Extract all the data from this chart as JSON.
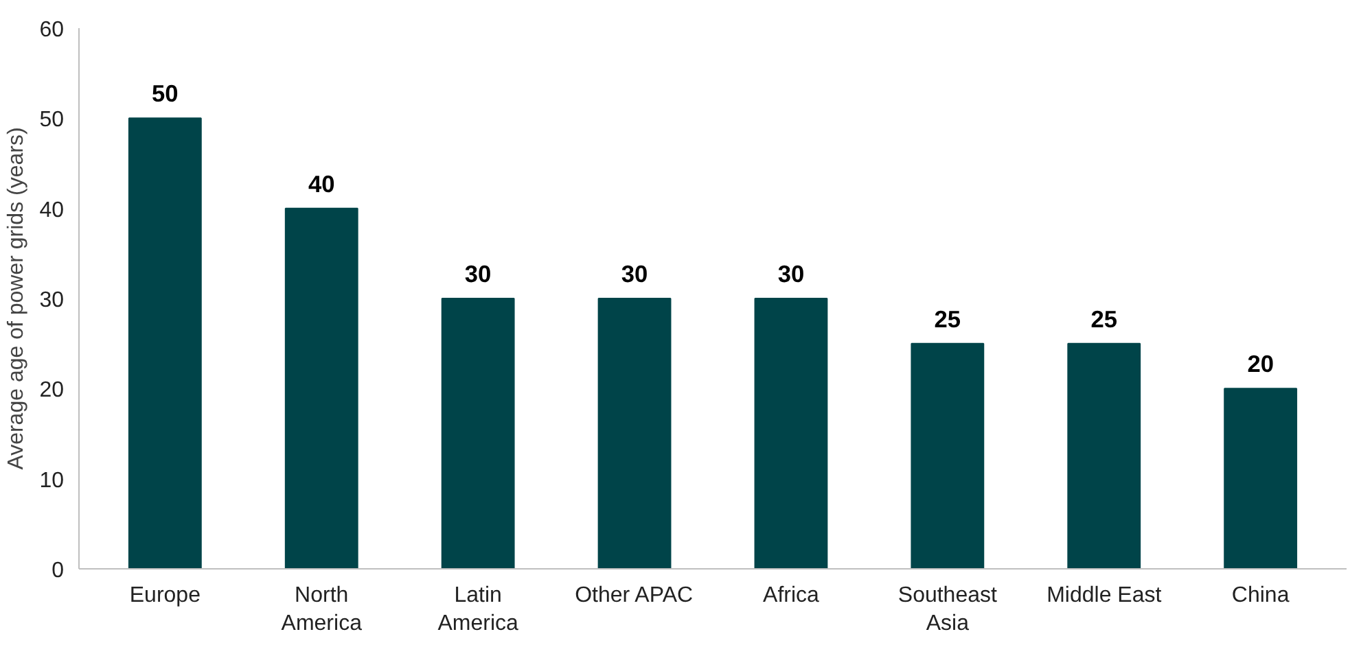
{
  "chart_data": {
    "type": "bar",
    "ylabel": "Average age of power grids (years)",
    "categories": [
      "Europe",
      "North America",
      "Latin America",
      "Other APAC",
      "Africa",
      "Southeast Asia",
      "Middle East",
      "China"
    ],
    "values": [
      50,
      40,
      30,
      30,
      30,
      25,
      25,
      20
    ],
    "color": "#004449",
    "data_labels": true,
    "ylim": [
      0,
      60
    ],
    "yticks": [
      0,
      10,
      20,
      30,
      40,
      50,
      60
    ],
    "grid": false
  }
}
